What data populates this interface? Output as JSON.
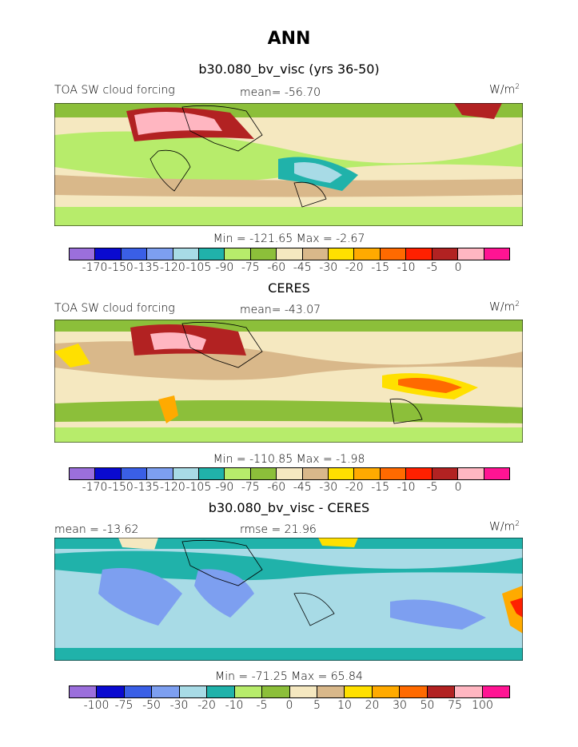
{
  "title": "ANN",
  "palette_main": [
    "#9b6fdc",
    "#0a0ad0",
    "#3a5fe6",
    "#7d9ff0",
    "#a8dbe6",
    "#20b2aa",
    "#b7ec6b",
    "#8cbf3a",
    "#f5e8c0",
    "#d9b88a",
    "#ffe000",
    "#ffaa00",
    "#ff6a00",
    "#ff2000",
    "#b22222",
    "#ffb6c1",
    "#ff1493"
  ],
  "palette_diff": [
    "#9b6fdc",
    "#0a0ad0",
    "#3a5fe6",
    "#7d9ff0",
    "#a8dbe6",
    "#20b2aa",
    "#b7ec6b",
    "#8cbf3a",
    "#f5e8c0",
    "#d9b88a",
    "#ffe000",
    "#ffaa00",
    "#ff6a00",
    "#b22222",
    "#ffb6c1",
    "#ff1493"
  ],
  "panels": [
    {
      "title": "b30.080_bv_visc (yrs 36-50)",
      "left_label": "TOA SW cloud forcing",
      "stat_label": "mean= -56.70",
      "units": "W/m",
      "units_sup": "2",
      "minmax": "Min = -121.65 Max = -2.67",
      "ticks": [
        "-170",
        "-150",
        "-135",
        "-120",
        "-105",
        "-90",
        "-75",
        "-60",
        "-45",
        "-30",
        "-20",
        "-15",
        "-10",
        "-5",
        "0"
      ]
    },
    {
      "title": "CERES",
      "left_label": "TOA SW cloud forcing",
      "stat_label": "mean= -43.07",
      "units": "W/m",
      "units_sup": "2",
      "minmax": "Min = -110.85 Max = -1.98",
      "ticks": [
        "-170",
        "-150",
        "-135",
        "-120",
        "-105",
        "-90",
        "-75",
        "-60",
        "-45",
        "-30",
        "-20",
        "-15",
        "-10",
        "-5",
        "0"
      ]
    },
    {
      "title": "b30.080_bv_visc - CERES",
      "left_label": "mean = -13.62",
      "stat_label": "rmse = 21.96",
      "units": "W/m",
      "units_sup": "2",
      "minmax": "Min = -71.25 Max = 65.84",
      "ticks": [
        "-100",
        "-75",
        "-50",
        "-30",
        "-20",
        "-10",
        "-5",
        "0",
        "5",
        "10",
        "20",
        "30",
        "50",
        "75",
        "100"
      ]
    }
  ]
}
